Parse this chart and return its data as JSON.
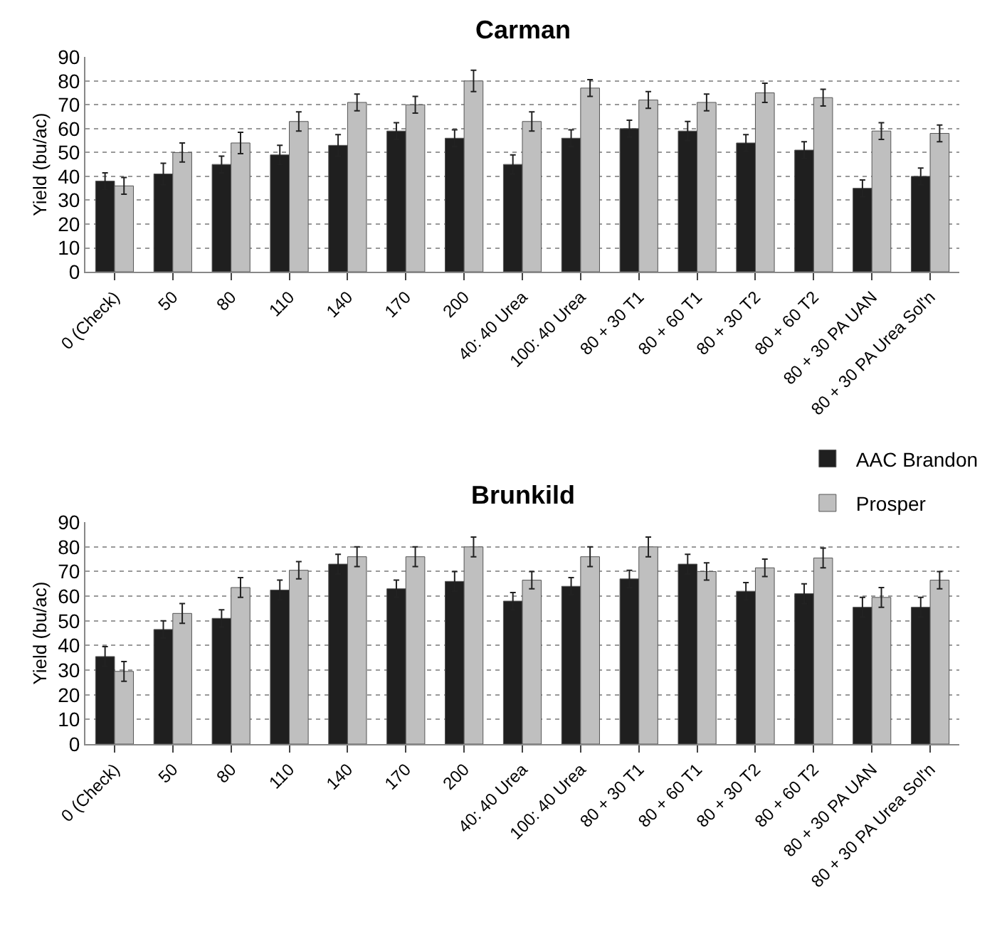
{
  "chart_data": [
    {
      "type": "bar",
      "title": "Carman",
      "ylabel": "Yield (bu/ac)",
      "categories": [
        "0 (Check)",
        "50",
        "80",
        "110",
        "140",
        "170",
        "200",
        "40: 40 Urea",
        "100: 40 Urea",
        "80 + 30 T1",
        "80 + 60 T1",
        "80 + 30 T2",
        "80 + 60 T2",
        "80 + 30 PA UAN",
        "80 + 30 PA Urea Sol'n"
      ],
      "series": [
        {
          "name": "AAC Brandon",
          "color": "#1f1f1f",
          "values": [
            38,
            41,
            45,
            49,
            53,
            59,
            56,
            45,
            56,
            60,
            59,
            54,
            51,
            35,
            40
          ],
          "errors": [
            3.5,
            4.5,
            3.5,
            4,
            4.5,
            3.5,
            3.5,
            4,
            3.5,
            3.5,
            4,
            3.5,
            3.5,
            3.5,
            3.5
          ]
        },
        {
          "name": "Prosper",
          "color": "#bfbfbf",
          "values": [
            36,
            50,
            54,
            63,
            71,
            70,
            80,
            63,
            77,
            72,
            71,
            75,
            73,
            59,
            58
          ],
          "errors": [
            3.5,
            4,
            4.5,
            4,
            3.5,
            3.5,
            4.5,
            4,
            3.5,
            3.5,
            3.5,
            4,
            3.5,
            3.5,
            3.5
          ]
        }
      ],
      "ylim": [
        0,
        90
      ],
      "yticks": [
        0,
        10,
        20,
        30,
        40,
        50,
        60,
        70,
        80,
        90
      ],
      "grid": "y",
      "legend": "bottom right"
    },
    {
      "type": "bar",
      "title": "Brunkild",
      "ylabel": "Yield (bu/ac)",
      "categories": [
        "0 (Check)",
        "50",
        "80",
        "110",
        "140",
        "170",
        "200",
        "40: 40 Urea",
        "100: 40 Urea",
        "80 + 30 T1",
        "80 + 60 T1",
        "80 + 30 T2",
        "80 + 60 T2",
        "80 + 30 PA UAN",
        "80 + 30 PA Urea Sol'n"
      ],
      "series": [
        {
          "color": "#1f1f1f",
          "values": [
            35.5,
            46.5,
            51,
            62.5,
            73,
            63,
            66,
            58,
            64,
            67,
            73,
            62,
            61,
            55.5,
            55.5
          ],
          "errors": [
            4,
            3.5,
            3.5,
            4,
            4,
            3.5,
            4,
            3.5,
            3.5,
            3.5,
            4,
            3.5,
            4,
            4,
            4
          ]
        },
        {
          "color": "#bfbfbf",
          "values": [
            29.5,
            53,
            63.5,
            70.5,
            76,
            76,
            80,
            66.5,
            76,
            80,
            70,
            71.5,
            75.5,
            59.5,
            66.5
          ],
          "errors": [
            4,
            4,
            4,
            3.5,
            4,
            4,
            4,
            3.5,
            4,
            4,
            3.5,
            3.5,
            4,
            4,
            3.5
          ]
        }
      ],
      "ylim": [
        0,
        90
      ],
      "yticks": [
        0,
        10,
        20,
        30,
        40,
        50,
        60,
        70,
        80,
        90
      ],
      "grid": "y",
      "legend": false
    }
  ]
}
